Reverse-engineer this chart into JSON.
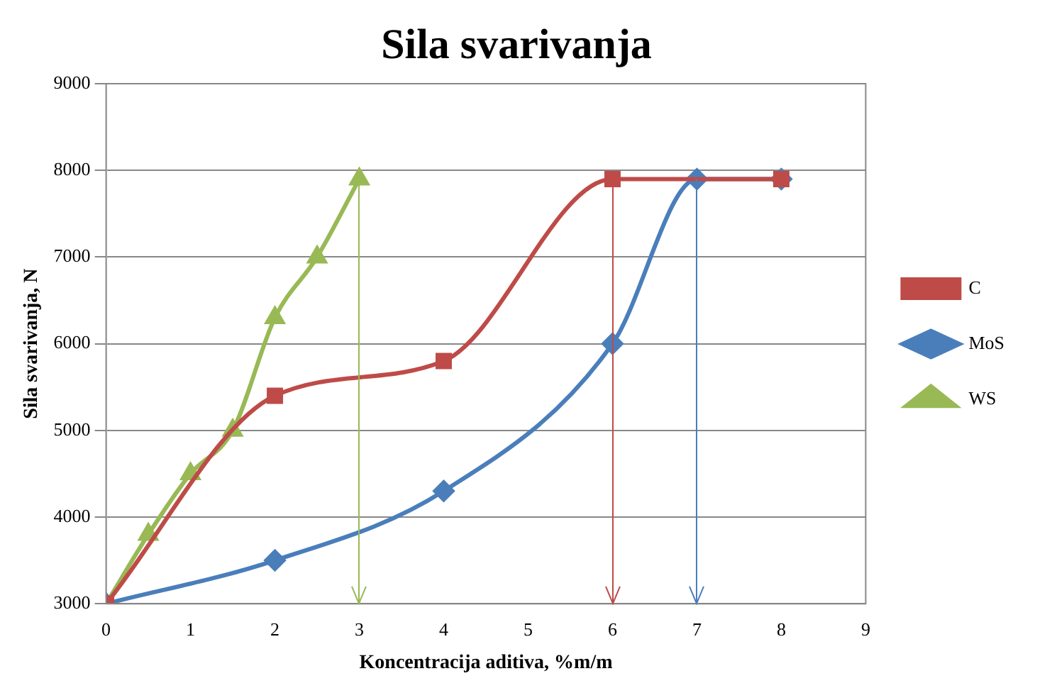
{
  "chart_data": {
    "type": "line",
    "title": "Sila svarivanja",
    "xlabel": "Koncentracija aditiva, %m/m",
    "ylabel": "Sila svarivanja, N",
    "xlim": [
      0,
      9
    ],
    "xticks": [
      0,
      1,
      2,
      3,
      4,
      5,
      6,
      7,
      8,
      9
    ],
    "ylim": [
      3000,
      9000
    ],
    "yticks": [
      3000,
      4000,
      5000,
      6000,
      7000,
      8000,
      9000
    ],
    "grid": "y",
    "legend": "right",
    "series": [
      {
        "name": "C",
        "color": "#be4b48",
        "marker": "square",
        "x": [
          0,
          2,
          4,
          6,
          8
        ],
        "values": [
          3000,
          5400,
          5800,
          7900,
          7900
        ]
      },
      {
        "name": "MoS",
        "color": "#4a7ebb",
        "marker": "diamond",
        "x": [
          0,
          2,
          4,
          6,
          7,
          8
        ],
        "values": [
          3000,
          3500,
          4300,
          6000,
          7900,
          7900
        ]
      },
      {
        "name": "WS",
        "color": "#98b954",
        "marker": "triangle",
        "x": [
          0,
          0.5,
          1,
          1.5,
          2,
          2.5,
          3
        ],
        "values": [
          3000,
          3800,
          4500,
          5000,
          6300,
          7000,
          7900
        ]
      }
    ],
    "ref_lines": [
      {
        "axis": "x",
        "value": 3,
        "color": "#98b954"
      },
      {
        "axis": "x",
        "value": 6,
        "color": "#be4b48"
      },
      {
        "axis": "x",
        "value": 7,
        "color": "#4a7ebb"
      }
    ]
  }
}
